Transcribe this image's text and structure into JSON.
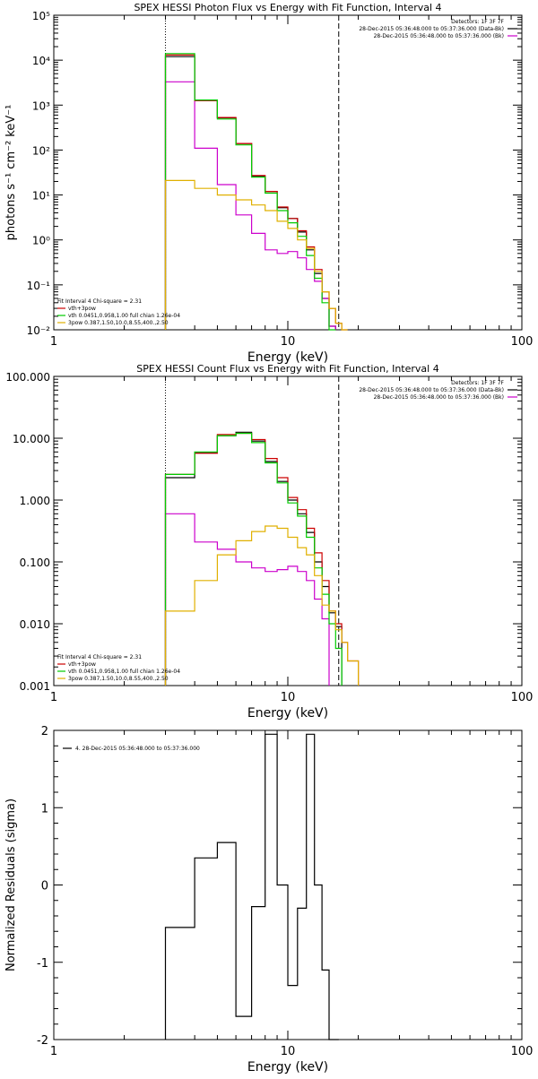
{
  "chart_data": [
    {
      "type": "line",
      "title": "SPEX HESSI Photon Flux vs Energy with Fit Function, Interval 4",
      "xlabel": "Energy (keV)",
      "ylabel": "photons s⁻¹ cm⁻² keV⁻¹",
      "xscale": "log",
      "yscale": "log",
      "xlim": [
        1,
        100
      ],
      "ylim": [
        0.01,
        100000
      ],
      "x_ticks": [
        "1",
        "10",
        "100"
      ],
      "y_ticks": [
        "10⁻²",
        "10⁻¹",
        "10⁰",
        "10¹",
        "10²",
        "10³",
        "10⁴",
        "10⁵"
      ],
      "fit_range_start": 3.0,
      "fit_range_end": 16.5,
      "legend_top_right": [
        {
          "text": "Detectors: 1F 3F 7F",
          "color": ""
        },
        {
          "text": "28-Dec-2015 05:36:48.000 to 05:37:36.000 (Data-Bk)",
          "color": "#000000"
        },
        {
          "text": "28-Dec-2015 05:36:48.000 to 05:37:36.000 (Bk)",
          "color": "#cc00cc"
        }
      ],
      "legend_bottom_left": [
        {
          "text": "Fit Interval  4   Chi-square = 2.31",
          "color": ""
        },
        {
          "text": "vth+3pow",
          "color": "#cc0000"
        },
        {
          "text": "vth 0.0451,0.958,1.00   full chian 1.26e-04",
          "color": "#00cc00"
        },
        {
          "text": "3pow 0.387,1.50,10.0,8.55,400.,2.50",
          "color": "#e0b000"
        }
      ],
      "edges": [
        3.0,
        4.0,
        5.0,
        6.0,
        7.0,
        8.0,
        9.0,
        10.0,
        11.0,
        12.0,
        13.0,
        14.0,
        15.0,
        16.0,
        17.0,
        18.0,
        20.0
      ],
      "series": [
        {
          "color": "#000000",
          "values": [
            12000,
            1300,
            520,
            140,
            26,
            12,
            5.2,
            3.0,
            1.5,
            0.6,
            0.18,
            0.05,
            0.012,
            null,
            null,
            null
          ]
        },
        {
          "color": "#cc00cc",
          "values": [
            3300,
            110,
            17,
            3.6,
            1.4,
            0.6,
            0.5,
            0.55,
            0.4,
            0.22,
            0.12,
            0.05,
            0.012,
            null,
            null,
            null
          ]
        },
        {
          "color": "#cc0000",
          "values": [
            13000,
            1250,
            530,
            140,
            27,
            12,
            5.4,
            3.0,
            1.6,
            0.7,
            0.22,
            0.07,
            0.03,
            0.014,
            0.01,
            null
          ]
        },
        {
          "color": "#00cc00",
          "values": [
            14000,
            1300,
            490,
            130,
            25,
            11,
            4.5,
            2.4,
            1.2,
            0.45,
            0.14,
            0.04,
            0.009,
            null,
            null,
            null
          ]
        },
        {
          "color": "#e0b000",
          "values": [
            21,
            14,
            10,
            7.8,
            6.0,
            4.5,
            2.6,
            1.8,
            1.0,
            0.65,
            0.2,
            0.07,
            0.03,
            0.014,
            0.01,
            null
          ]
        }
      ]
    },
    {
      "type": "line",
      "title": "SPEX HESSI Count Flux vs Energy with Fit Function, Interval 4",
      "xlabel": "Energy (keV)",
      "ylabel": "",
      "xscale": "log",
      "yscale": "log",
      "xlim": [
        1,
        100
      ],
      "ylim": [
        0.001,
        100
      ],
      "x_ticks": [
        "1",
        "10",
        "100"
      ],
      "y_ticks": [
        "0.001",
        "0.010",
        "0.100",
        "1.000",
        "10.000",
        "100.000"
      ],
      "fit_range_start": 3.0,
      "fit_range_end": 16.5,
      "legend_top_right": [
        {
          "text": "Detectors: 1F 3F 7F",
          "color": ""
        },
        {
          "text": "28-Dec-2015 05:36:48.000 to 05:37:36.000 (Data-Bk)",
          "color": "#000000"
        },
        {
          "text": "28-Dec-2015 05:36:48.000 to 05:37:36.000 (Bk)",
          "color": "#cc00cc"
        }
      ],
      "legend_bottom_left": [
        {
          "text": "Fit Interval  4   Chi-square = 2.31",
          "color": ""
        },
        {
          "text": "vth+3pow",
          "color": "#cc0000"
        },
        {
          "text": "vth 0.0451,0.958,1.00   full chian 1.26e-04",
          "color": "#00cc00"
        },
        {
          "text": "3pow 0.387,1.50,10.0,8.55,400.,2.50",
          "color": "#e0b000"
        }
      ],
      "edges": [
        3.0,
        4.0,
        5.0,
        6.0,
        7.0,
        8.0,
        9.0,
        10.0,
        11.0,
        12.0,
        13.0,
        14.0,
        15.0,
        16.0,
        17.0,
        18.0,
        20.0
      ],
      "series": [
        {
          "color": "#000000",
          "values": [
            2.3,
            5.8,
            11.0,
            12.5,
            9.0,
            4.2,
            2.0,
            1.0,
            0.6,
            0.3,
            0.1,
            0.04,
            0.015,
            0.009,
            null,
            null
          ]
        },
        {
          "color": "#cc00cc",
          "values": [
            0.6,
            0.21,
            0.16,
            0.1,
            0.08,
            0.07,
            0.075,
            0.085,
            0.07,
            0.05,
            0.025,
            0.012,
            null,
            null,
            null,
            null
          ]
        },
        {
          "color": "#cc0000",
          "values": [
            2.6,
            5.7,
            11.5,
            12.0,
            9.5,
            4.7,
            2.3,
            1.1,
            0.7,
            0.35,
            0.14,
            0.05,
            0.016,
            0.01,
            0.005,
            0.0025
          ]
        },
        {
          "color": "#00cc00",
          "values": [
            2.6,
            6.0,
            11.0,
            12.0,
            8.5,
            4.0,
            1.9,
            0.9,
            0.55,
            0.25,
            0.08,
            0.03,
            0.01,
            0.004,
            null,
            null
          ]
        },
        {
          "color": "#e0b000",
          "values": [
            0.016,
            0.05,
            0.13,
            0.22,
            0.31,
            0.38,
            0.35,
            0.25,
            0.17,
            0.13,
            0.06,
            0.02,
            0.016,
            0.008,
            0.005,
            0.0025
          ]
        }
      ]
    },
    {
      "type": "line",
      "title": "",
      "xlabel": "Energy (keV)",
      "ylabel": "Normalized Residuals (sigma)",
      "xscale": "log",
      "yscale": "linear",
      "xlim": [
        1,
        100
      ],
      "ylim": [
        -2,
        2
      ],
      "x_ticks": [
        "1",
        "10",
        "100"
      ],
      "y_ticks": [
        "-2",
        "-1",
        "0",
        "1",
        "2"
      ],
      "legend_top_left": [
        {
          "text": "4. 28-Dec-2015 05:36:48.000 to 05:37:36.000",
          "color": "#000000"
        }
      ],
      "edges": [
        3.0,
        4.0,
        5.0,
        6.0,
        7.0,
        8.0,
        9.0,
        10.0,
        11.0,
        12.0,
        13.0,
        14.0,
        15.0,
        16.5
      ],
      "series": [
        {
          "color": "#000000",
          "values": [
            -0.55,
            0.35,
            0.55,
            -1.7,
            -0.28,
            1.95,
            0.0,
            -1.3,
            -0.3,
            1.95,
            0.0,
            -1.1,
            -2.0
          ]
        }
      ]
    }
  ]
}
